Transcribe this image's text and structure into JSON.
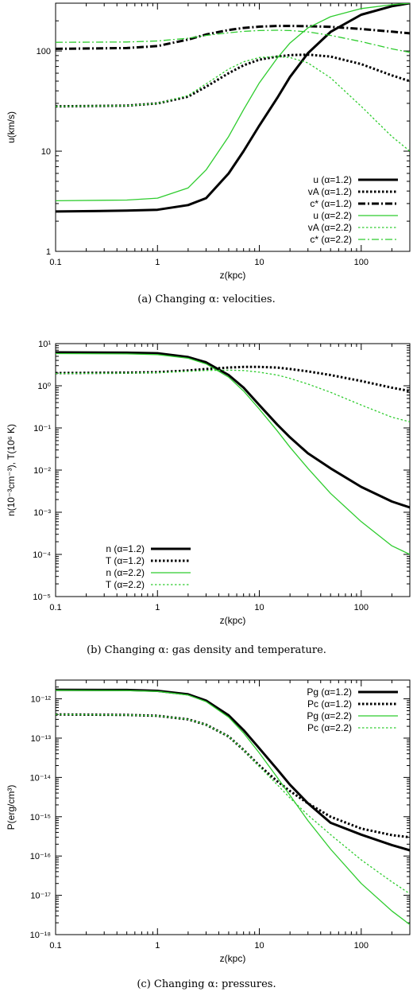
{
  "colors": {
    "black": "#000000",
    "green": "#2ecc2e"
  },
  "chart_data": [
    {
      "type": "line",
      "caption": "(a) Changing α: velocities.",
      "xlabel": "z(kpc)",
      "ylabel": "u(km/s)",
      "xscale": "log",
      "yscale": "log",
      "xlim": [
        0.1,
        300
      ],
      "ylim": [
        1,
        300
      ],
      "xticks": [
        0.1,
        1,
        10,
        100
      ],
      "xticklabels": [
        "0.1",
        "1",
        "10",
        "100"
      ],
      "yticks": [
        1,
        10,
        100
      ],
      "yticklabels": [
        "1",
        "10",
        "100"
      ],
      "legend_position": "bottom-right",
      "x": [
        0.1,
        0.5,
        1,
        2,
        3,
        5,
        7,
        10,
        15,
        20,
        30,
        50,
        100,
        200,
        300
      ],
      "series": [
        {
          "name": "u (α=1.2)",
          "color": "#000000",
          "style": "solid",
          "width": 3,
          "values": [
            2.5,
            2.55,
            2.6,
            2.9,
            3.4,
            6,
            10,
            18,
            34,
            55,
            95,
            155,
            230,
            280,
            300
          ]
        },
        {
          "name": "vA (α=1.2)",
          "color": "#000000",
          "style": "dotted",
          "width": 3,
          "values": [
            28,
            28.5,
            30,
            35,
            44,
            60,
            72,
            82,
            88,
            91,
            92,
            88,
            74,
            57,
            50
          ]
        },
        {
          "name": "c* (α=1.2)",
          "color": "#000000",
          "style": "dashdot",
          "width": 3,
          "values": [
            105,
            107,
            112,
            130,
            146,
            162,
            170,
            175,
            178,
            178,
            177,
            174,
            166,
            156,
            150
          ]
        },
        {
          "name": "u (α=2.2)",
          "color": "#2ecc2e",
          "style": "solid",
          "width": 1.3,
          "values": [
            3.2,
            3.25,
            3.4,
            4.3,
            6.5,
            14,
            26,
            48,
            85,
            120,
            170,
            220,
            265,
            290,
            300
          ]
        },
        {
          "name": "vA (α=2.2)",
          "color": "#2ecc2e",
          "style": "dotted",
          "width": 1.3,
          "values": [
            28,
            28.5,
            30,
            36,
            47,
            66,
            78,
            86,
            88,
            86,
            76,
            54,
            28,
            14,
            10
          ]
        },
        {
          "name": "c* (α=2.2)",
          "color": "#2ecc2e",
          "style": "dashdot",
          "width": 1.3,
          "values": [
            122,
            123,
            126,
            134,
            143,
            152,
            157,
            160,
            161,
            160,
            155,
            143,
            124,
            105,
            97
          ]
        }
      ]
    },
    {
      "type": "line",
      "caption": "(b) Changing α: gas density and temperature.",
      "xlabel": "z(kpc)",
      "ylabel": "n(10⁻³cm⁻³), T(10⁶ K)",
      "xscale": "log",
      "yscale": "log",
      "xlim": [
        0.1,
        300
      ],
      "ylim": [
        1e-05,
        10
      ],
      "xticks": [
        0.1,
        1,
        10,
        100
      ],
      "xticklabels": [
        "0.1",
        "1",
        "10",
        "100"
      ],
      "yticks": [
        1e-05,
        0.0001,
        0.001,
        0.01,
        0.1,
        1,
        10
      ],
      "yticklabels": [
        "10⁻⁵",
        "10⁻⁴",
        "10⁻³",
        "10⁻²",
        "10⁻¹",
        "10⁰",
        "10¹"
      ],
      "legend_position": "bottom-left",
      "x": [
        0.1,
        0.5,
        1,
        2,
        3,
        5,
        7,
        10,
        15,
        20,
        30,
        50,
        100,
        200,
        300
      ],
      "series": [
        {
          "name": "n (α=1.2)",
          "color": "#000000",
          "style": "solid",
          "width": 3,
          "values": [
            6.2,
            6.1,
            5.9,
            4.8,
            3.6,
            1.8,
            0.9,
            0.35,
            0.12,
            0.06,
            0.025,
            0.011,
            0.004,
            0.0018,
            0.0013
          ]
        },
        {
          "name": "T (α=1.2)",
          "color": "#000000",
          "style": "dotted",
          "width": 3,
          "values": [
            2.0,
            2.05,
            2.1,
            2.3,
            2.5,
            2.7,
            2.8,
            2.8,
            2.7,
            2.5,
            2.2,
            1.8,
            1.3,
            0.9,
            0.75
          ]
        },
        {
          "name": "n (α=2.2)",
          "color": "#2ecc2e",
          "style": "solid",
          "width": 1.3,
          "values": [
            5.8,
            5.7,
            5.5,
            4.5,
            3.3,
            1.6,
            0.75,
            0.28,
            0.085,
            0.035,
            0.011,
            0.0028,
            0.0006,
            0.00016,
            0.0001
          ]
        },
        {
          "name": "T (α=2.2)",
          "color": "#2ecc2e",
          "style": "dotted",
          "width": 1.3,
          "values": [
            1.95,
            2.0,
            2.05,
            2.2,
            2.3,
            2.35,
            2.3,
            2.1,
            1.8,
            1.5,
            1.1,
            0.7,
            0.35,
            0.18,
            0.14
          ]
        }
      ]
    },
    {
      "type": "line",
      "caption": "(c) Changing α: pressures.",
      "xlabel": "z(kpc)",
      "ylabel": "P(erg/cm³)",
      "xscale": "log",
      "yscale": "log",
      "xlim": [
        0.1,
        300
      ],
      "ylim": [
        1e-18,
        3e-12
      ],
      "xticks": [
        0.1,
        1,
        10,
        100
      ],
      "xticklabels": [
        "0.1",
        "1",
        "10",
        "100"
      ],
      "yticks": [
        1e-18,
        1e-17,
        1e-16,
        1e-15,
        1e-14,
        1e-13,
        1e-12
      ],
      "yticklabels": [
        "10⁻¹⁸",
        "10⁻¹⁷",
        "10⁻¹⁶",
        "10⁻¹⁵",
        "10⁻¹⁴",
        "10⁻¹³",
        "10⁻¹²"
      ],
      "legend_position": "top-right",
      "x": [
        0.1,
        0.5,
        1,
        2,
        3,
        5,
        7,
        10,
        15,
        20,
        30,
        50,
        100,
        200,
        300
      ],
      "series": [
        {
          "name": "Pg (α=1.2)",
          "color": "#000000",
          "style": "solid",
          "width": 3,
          "values": [
            1.7e-12,
            1.68e-12,
            1.6e-12,
            1.3e-12,
            9e-13,
            3.8e-13,
            1.6e-13,
            5.5e-14,
            1.6e-14,
            6.5e-15,
            2.2e-15,
            7e-16,
            3.5e-16,
            1.9e-16,
            1.4e-16
          ]
        },
        {
          "name": "Pc (α=1.2)",
          "color": "#000000",
          "style": "dotted",
          "width": 3,
          "values": [
            4e-13,
            3.9e-13,
            3.7e-13,
            3e-13,
            2.2e-13,
            1.1e-13,
            5e-14,
            2e-14,
            8e-15,
            4.5e-15,
            2.2e-15,
            1e-15,
            5e-16,
            3.4e-16,
            3e-16
          ]
        },
        {
          "name": "Pg (α=2.2)",
          "color": "#2ecc2e",
          "style": "solid",
          "width": 1.3,
          "values": [
            1.65e-12,
            1.62e-12,
            1.55e-12,
            1.25e-12,
            8.5e-13,
            3.4e-13,
            1.35e-13,
            4.2e-14,
            1e-14,
            3.5e-15,
            8e-16,
            1.5e-16,
            2e-17,
            4e-18,
            1.8e-18
          ]
        },
        {
          "name": "Pc (α=2.2)",
          "color": "#2ecc2e",
          "style": "dotted",
          "width": 1.3,
          "values": [
            4e-13,
            3.9e-13,
            3.7e-13,
            3e-13,
            2.2e-13,
            1.1e-13,
            5e-14,
            1.9e-14,
            6.5e-15,
            3e-15,
            1.1e-15,
            3.5e-16,
            8e-17,
            2.2e-17,
            1.1e-17
          ]
        }
      ]
    }
  ]
}
